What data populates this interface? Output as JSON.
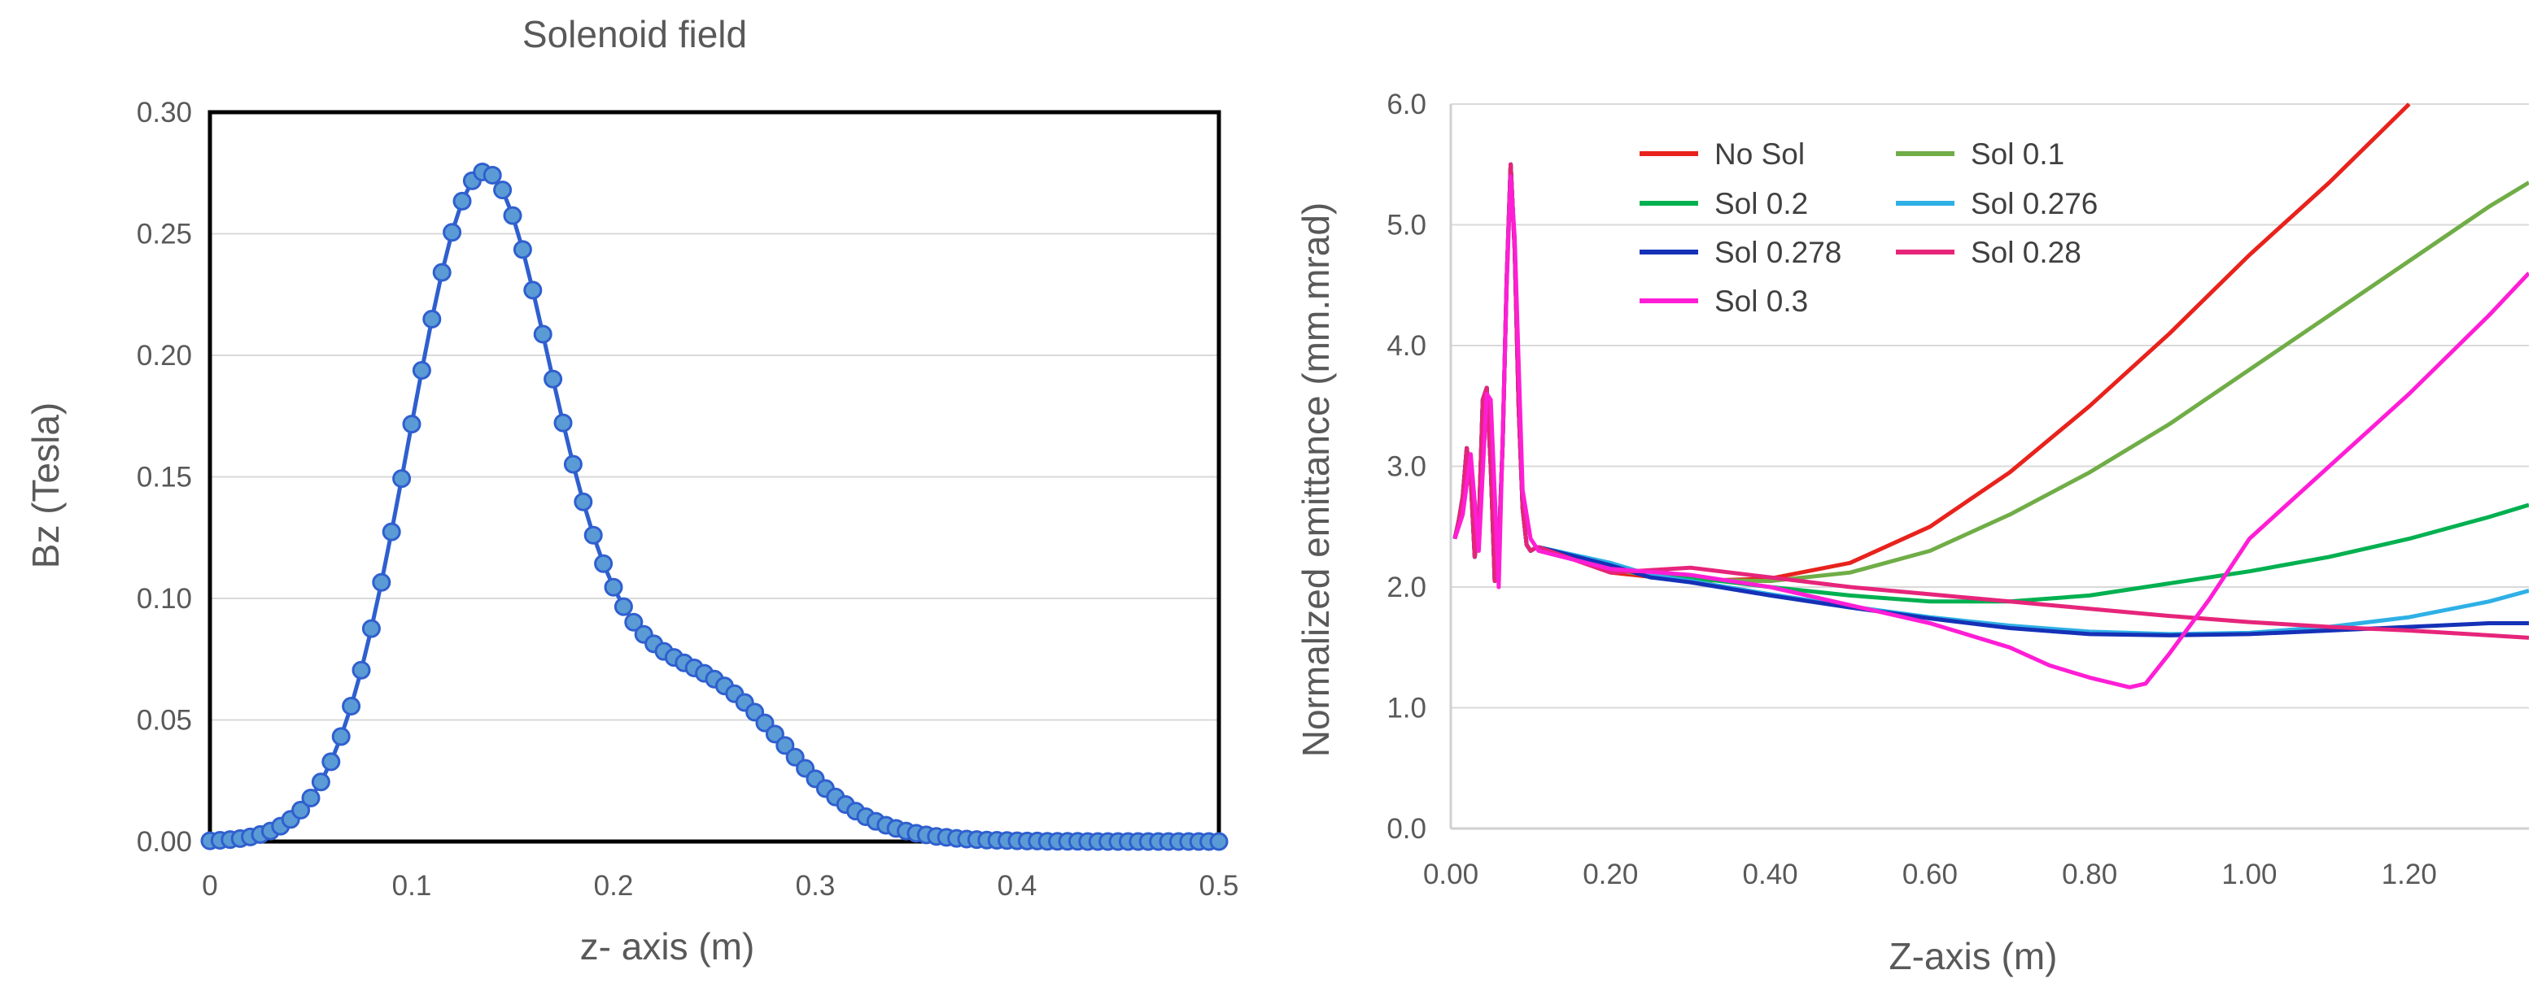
{
  "chart_data": [
    {
      "type": "scatter-line",
      "title": "Solenoid field",
      "xlabel": "z- axis (m)",
      "ylabel": "Bz (Tesla)",
      "xlim": [
        0,
        0.5
      ],
      "ylim": [
        0,
        0.3
      ],
      "xticks": [
        "0",
        "0.1",
        "0.2",
        "0.3",
        "0.4",
        "0.5"
      ],
      "yticks": [
        "0.00",
        "0.05",
        "0.10",
        "0.15",
        "0.20",
        "0.25",
        "0.30"
      ],
      "grid": true,
      "series": [
        {
          "name": "Bz",
          "color": "#2F5FCF",
          "marker_color": "#5B9BD5",
          "x": [
            0,
            0.005,
            0.01,
            0.015,
            0.02,
            0.025,
            0.03,
            0.035,
            0.04,
            0.045,
            0.05,
            0.055,
            0.06,
            0.065,
            0.07,
            0.075,
            0.08,
            0.085,
            0.09,
            0.095,
            0.1,
            0.105,
            0.11,
            0.115,
            0.12,
            0.125,
            0.13,
            0.135,
            0.14,
            0.145,
            0.15,
            0.155,
            0.16,
            0.165,
            0.17,
            0.175,
            0.18,
            0.185,
            0.19,
            0.195,
            0.2,
            0.205,
            0.21,
            0.215,
            0.22,
            0.225,
            0.23,
            0.235,
            0.24,
            0.245,
            0.25,
            0.255,
            0.26,
            0.265,
            0.27,
            0.275,
            0.28,
            0.285,
            0.29,
            0.295,
            0.3,
            0.305,
            0.31,
            0.315,
            0.32,
            0.325,
            0.33,
            0.335,
            0.34,
            0.345,
            0.35,
            0.355,
            0.36,
            0.365,
            0.37,
            0.375,
            0.38,
            0.385,
            0.39,
            0.395,
            0.4,
            0.405,
            0.41,
            0.415,
            0.42,
            0.425,
            0.43,
            0.435,
            0.44,
            0.445,
            0.45,
            0.455,
            0.46,
            0.465,
            0.47,
            0.475,
            0.48,
            0.485,
            0.49,
            0.495,
            0.5
          ],
          "y": [
            0.0003,
            0.0005,
            0.0008,
            0.0012,
            0.0019,
            0.0029,
            0.0043,
            0.0063,
            0.0091,
            0.0129,
            0.0179,
            0.0245,
            0.0328,
            0.0432,
            0.0557,
            0.0705,
            0.0876,
            0.1066,
            0.1274,
            0.1493,
            0.1717,
            0.1938,
            0.2149,
            0.2341,
            0.2506,
            0.2634,
            0.2718,
            0.2754,
            0.2741,
            0.268,
            0.2575,
            0.2435,
            0.2268,
            0.2087,
            0.1902,
            0.1722,
            0.1552,
            0.1397,
            0.126,
            0.1143,
            0.1046,
            0.0966,
            0.0902,
            0.0852,
            0.0813,
            0.0782,
            0.0757,
            0.0735,
            0.0714,
            0.0692,
            0.0668,
            0.064,
            0.0608,
            0.0572,
            0.0532,
            0.0488,
            0.0442,
            0.0395,
            0.0347,
            0.0301,
            0.0258,
            0.0218,
            0.0183,
            0.0152,
            0.0125,
            0.0102,
            0.0083,
            0.0067,
            0.0054,
            0.0043,
            0.0034,
            0.0027,
            0.0021,
            0.0017,
            0.0013,
            0.001,
            0.0008,
            0.0006,
            0.0005,
            0.0004,
            0.0003,
            0.0002,
            0.0002,
            0.0001,
            0.0001,
            0.0001,
            0.0001,
            0,
            0,
            0,
            0,
            0,
            0,
            0,
            0,
            0,
            0,
            0,
            0,
            0,
            0
          ]
        }
      ]
    },
    {
      "type": "line",
      "title": "",
      "xlabel": "Z-axis (m)",
      "ylabel": "Normalized emittance (mm.mrad)",
      "xlim": [
        0,
        1.35
      ],
      "ylim": [
        0,
        6
      ],
      "xticks": [
        "0.00",
        "0.20",
        "0.40",
        "0.60",
        "0.80",
        "1.00",
        "1.20"
      ],
      "yticks": [
        "0.0",
        "1.0",
        "2.0",
        "3.0",
        "4.0",
        "5.0",
        "6.0"
      ],
      "grid": true,
      "legend_position": "top-left",
      "series": [
        {
          "name": "No Sol",
          "color": "#E8221C",
          "x": [
            0.11,
            0.2,
            0.3,
            0.4,
            0.5,
            0.6,
            0.7,
            0.8,
            0.9,
            1.0,
            1.1,
            1.2
          ],
          "y": [
            2.25,
            2.12,
            2.05,
            2.07,
            2.2,
            2.5,
            2.95,
            3.5,
            4.1,
            4.75,
            5.35,
            6.0
          ]
        },
        {
          "name": "Sol 0.1",
          "color": "#70AD47",
          "x": [
            0.11,
            0.2,
            0.3,
            0.4,
            0.5,
            0.6,
            0.7,
            0.8,
            0.9,
            1.0,
            1.1,
            1.2,
            1.3,
            1.35
          ],
          "y": [
            2.28,
            2.14,
            2.06,
            2.05,
            2.12,
            2.3,
            2.6,
            2.95,
            3.35,
            3.8,
            4.25,
            4.7,
            5.15,
            5.35
          ]
        },
        {
          "name": "Sol 0.2",
          "color": "#00B050",
          "x": [
            0.11,
            0.2,
            0.3,
            0.4,
            0.5,
            0.6,
            0.7,
            0.8,
            0.9,
            1.0,
            1.1,
            1.2,
            1.3,
            1.35
          ],
          "y": [
            2.3,
            2.16,
            2.08,
            2.0,
            1.93,
            1.88,
            1.88,
            1.93,
            2.03,
            2.13,
            2.25,
            2.4,
            2.58,
            2.68
          ]
        },
        {
          "name": "Sol 0.276",
          "color": "#2EB0E6",
          "x": [
            0.11,
            0.2,
            0.25,
            0.3,
            0.4,
            0.5,
            0.6,
            0.7,
            0.8,
            0.9,
            1.0,
            1.1,
            1.2,
            1.3,
            1.35
          ],
          "y": [
            2.4,
            2.2,
            2.1,
            2.05,
            1.94,
            1.84,
            1.75,
            1.68,
            1.63,
            1.61,
            1.62,
            1.67,
            1.75,
            1.88,
            1.97
          ]
        },
        {
          "name": "Sol 0.278",
          "color": "#1531B7",
          "x": [
            0.11,
            0.2,
            0.25,
            0.3,
            0.4,
            0.5,
            0.6,
            0.7,
            0.8,
            0.9,
            1.0,
            1.1,
            1.2,
            1.3,
            1.35
          ],
          "y": [
            2.33,
            2.18,
            2.08,
            2.04,
            1.93,
            1.83,
            1.74,
            1.66,
            1.61,
            1.6,
            1.61,
            1.64,
            1.67,
            1.7,
            1.7
          ]
        },
        {
          "name": "Sol 0.28",
          "color": "#E6257A",
          "x": [
            0.11,
            0.2,
            0.25,
            0.3,
            0.4,
            0.5,
            0.6,
            0.7,
            0.8,
            0.9,
            1.0,
            1.1,
            1.2,
            1.3,
            1.35
          ],
          "y": [
            2.28,
            2.12,
            2.14,
            2.16,
            2.08,
            2.0,
            1.94,
            1.88,
            1.82,
            1.76,
            1.71,
            1.67,
            1.64,
            1.6,
            1.58
          ]
        },
        {
          "name": "Sol 0.3",
          "color": "#FF1ED6",
          "x": [
            0.005,
            0.015,
            0.025,
            0.035,
            0.045,
            0.05,
            0.06,
            0.07,
            0.075,
            0.08,
            0.09,
            0.1,
            0.11,
            0.2,
            0.3,
            0.4,
            0.5,
            0.6,
            0.7,
            0.75,
            0.8,
            0.85,
            0.87,
            0.9,
            0.95,
            1.0,
            1.1,
            1.2,
            1.3,
            1.35
          ],
          "y": [
            2.4,
            2.6,
            3.1,
            2.3,
            3.6,
            3.55,
            2.0,
            4.5,
            5.4,
            4.9,
            2.8,
            2.4,
            2.3,
            2.15,
            2.1,
            2.0,
            1.85,
            1.7,
            1.5,
            1.35,
            1.25,
            1.17,
            1.2,
            1.45,
            1.9,
            2.4,
            3.0,
            3.6,
            4.25,
            4.6
          ]
        }
      ],
      "common_oscillation": {
        "x": [
          0.005,
          0.01,
          0.015,
          0.02,
          0.025,
          0.03,
          0.035,
          0.04,
          0.045,
          0.05,
          0.055,
          0.06,
          0.065,
          0.07,
          0.075,
          0.08,
          0.085,
          0.09,
          0.095,
          0.1,
          0.105,
          0.11
        ],
        "y": [
          2.4,
          2.55,
          2.75,
          3.15,
          2.9,
          2.25,
          2.5,
          3.55,
          3.65,
          3.0,
          2.05,
          2.3,
          3.2,
          4.55,
          5.5,
          4.8,
          3.5,
          2.65,
          2.35,
          2.3,
          2.32,
          2.33
        ]
      }
    }
  ]
}
